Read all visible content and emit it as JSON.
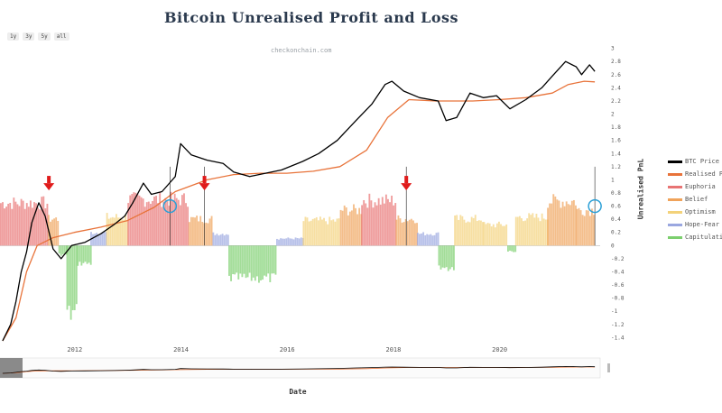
{
  "chart_data": {
    "type": "line",
    "title": "Bitcoin Unrealised Profit and Loss",
    "watermark": "checkonchain.com",
    "xlabel": "Date",
    "y2label": "Unrealised PnL",
    "range_buttons": [
      "1y",
      "3y",
      "5y",
      "all"
    ],
    "x_ticks": [
      "2012",
      "2014",
      "2016",
      "2018",
      "2020"
    ],
    "y2_ticks": [
      3,
      2.8,
      2.6,
      2.4,
      2.2,
      2,
      1.8,
      1.6,
      1.4,
      1.2,
      1,
      0.8,
      0.6,
      0.4,
      0.2,
      0,
      -0.2,
      -0.4,
      -0.6,
      -0.8,
      -1,
      -1.2,
      -1.4
    ],
    "y2lim": [
      -1.45,
      3.05
    ],
    "x_range": [
      2010.6,
      2021.9
    ],
    "legend": [
      {
        "label": "BTC Price",
        "color": "#000000"
      },
      {
        "label": "Realised Price",
        "color": "#e8733a"
      },
      {
        "label": "Euphoria",
        "color": "#e87474"
      },
      {
        "label": "Belief",
        "color": "#f0a35a"
      },
      {
        "label": "Optimism",
        "color": "#f3d27a"
      },
      {
        "label": "Hope-Fear",
        "color": "#9aa7e0"
      },
      {
        "label": "Capitulation",
        "color": "#7ccf6e"
      }
    ],
    "btc_price": [
      [
        2010.65,
        -1.45
      ],
      [
        2010.8,
        -1.2
      ],
      [
        2010.9,
        -0.85
      ],
      [
        2011.0,
        -0.4
      ],
      [
        2011.1,
        -0.1
      ],
      [
        2011.2,
        0.35
      ],
      [
        2011.33,
        0.65
      ],
      [
        2011.45,
        0.45
      ],
      [
        2011.6,
        -0.05
      ],
      [
        2011.75,
        -0.2
      ],
      [
        2011.95,
        0.0
      ],
      [
        2012.2,
        0.05
      ],
      [
        2012.5,
        0.18
      ],
      [
        2012.75,
        0.32
      ],
      [
        2012.95,
        0.45
      ],
      [
        2013.1,
        0.65
      ],
      [
        2013.3,
        0.95
      ],
      [
        2013.45,
        0.78
      ],
      [
        2013.65,
        0.82
      ],
      [
        2013.9,
        1.05
      ],
      [
        2014.0,
        1.55
      ],
      [
        2014.2,
        1.38
      ],
      [
        2014.5,
        1.3
      ],
      [
        2014.8,
        1.25
      ],
      [
        2015.0,
        1.12
      ],
      [
        2015.3,
        1.05
      ],
      [
        2015.6,
        1.1
      ],
      [
        2015.9,
        1.15
      ],
      [
        2016.3,
        1.28
      ],
      [
        2016.6,
        1.4
      ],
      [
        2016.95,
        1.6
      ],
      [
        2017.3,
        1.9
      ],
      [
        2017.6,
        2.15
      ],
      [
        2017.85,
        2.45
      ],
      [
        2017.98,
        2.5
      ],
      [
        2018.2,
        2.35
      ],
      [
        2018.5,
        2.25
      ],
      [
        2018.85,
        2.2
      ],
      [
        2019.0,
        1.9
      ],
      [
        2019.2,
        1.95
      ],
      [
        2019.45,
        2.32
      ],
      [
        2019.7,
        2.25
      ],
      [
        2019.95,
        2.28
      ],
      [
        2020.2,
        2.08
      ],
      [
        2020.5,
        2.22
      ],
      [
        2020.8,
        2.4
      ],
      [
        2021.0,
        2.58
      ],
      [
        2021.25,
        2.8
      ],
      [
        2021.45,
        2.72
      ],
      [
        2021.55,
        2.6
      ],
      [
        2021.7,
        2.75
      ],
      [
        2021.8,
        2.65
      ]
    ],
    "realised_price": [
      [
        2010.65,
        -1.45
      ],
      [
        2010.9,
        -1.1
      ],
      [
        2011.1,
        -0.4
      ],
      [
        2011.3,
        0.0
      ],
      [
        2011.6,
        0.12
      ],
      [
        2012.0,
        0.2
      ],
      [
        2012.5,
        0.28
      ],
      [
        2013.0,
        0.38
      ],
      [
        2013.5,
        0.58
      ],
      [
        2013.9,
        0.82
      ],
      [
        2014.5,
        1.0
      ],
      [
        2015.0,
        1.08
      ],
      [
        2015.5,
        1.1
      ],
      [
        2016.0,
        1.1
      ],
      [
        2016.5,
        1.13
      ],
      [
        2017.0,
        1.2
      ],
      [
        2017.5,
        1.45
      ],
      [
        2017.9,
        1.95
      ],
      [
        2018.3,
        2.22
      ],
      [
        2018.8,
        2.2
      ],
      [
        2019.5,
        2.2
      ],
      [
        2020.0,
        2.22
      ],
      [
        2020.5,
        2.25
      ],
      [
        2021.0,
        2.32
      ],
      [
        2021.3,
        2.45
      ],
      [
        2021.6,
        2.5
      ],
      [
        2021.8,
        2.49
      ]
    ],
    "unrealised_pnl_segments": [
      {
        "start": 2010.6,
        "end": 2011.5,
        "level": 0.72,
        "zone": "Euphoria"
      },
      {
        "start": 2011.5,
        "end": 2011.7,
        "level": 0.45,
        "zone": "Belief"
      },
      {
        "start": 2011.7,
        "end": 2011.85,
        "level": -0.15,
        "zone": "Capitulation"
      },
      {
        "start": 2011.85,
        "end": 2012.05,
        "level": -1.15,
        "zone": "Capitulation"
      },
      {
        "start": 2012.05,
        "end": 2012.3,
        "level": -0.3,
        "zone": "Capitulation"
      },
      {
        "start": 2012.3,
        "end": 2012.6,
        "level": 0.22,
        "zone": "Hope-Fear"
      },
      {
        "start": 2012.6,
        "end": 2013.0,
        "level": 0.48,
        "zone": "Optimism"
      },
      {
        "start": 2013.0,
        "end": 2014.15,
        "level": 0.78,
        "zone": "Euphoria"
      },
      {
        "start": 2014.15,
        "end": 2014.6,
        "level": 0.45,
        "zone": "Belief"
      },
      {
        "start": 2014.6,
        "end": 2014.9,
        "level": 0.2,
        "zone": "Hope-Fear"
      },
      {
        "start": 2014.9,
        "end": 2015.8,
        "level": -0.55,
        "zone": "Capitulation"
      },
      {
        "start": 2015.8,
        "end": 2016.3,
        "level": 0.12,
        "zone": "Hope-Fear"
      },
      {
        "start": 2016.3,
        "end": 2017.0,
        "level": 0.42,
        "zone": "Optimism"
      },
      {
        "start": 2017.0,
        "end": 2017.4,
        "level": 0.6,
        "zone": "Belief"
      },
      {
        "start": 2017.4,
        "end": 2018.05,
        "level": 0.76,
        "zone": "Euphoria"
      },
      {
        "start": 2018.05,
        "end": 2018.45,
        "level": 0.45,
        "zone": "Belief"
      },
      {
        "start": 2018.45,
        "end": 2018.85,
        "level": 0.2,
        "zone": "Hope-Fear"
      },
      {
        "start": 2018.85,
        "end": 2019.15,
        "level": -0.4,
        "zone": "Capitulation"
      },
      {
        "start": 2019.15,
        "end": 2019.7,
        "level": 0.45,
        "zone": "Optimism"
      },
      {
        "start": 2019.7,
        "end": 2020.15,
        "level": 0.35,
        "zone": "Optimism"
      },
      {
        "start": 2020.15,
        "end": 2020.3,
        "level": -0.1,
        "zone": "Capitulation"
      },
      {
        "start": 2020.3,
        "end": 2020.9,
        "level": 0.48,
        "zone": "Optimism"
      },
      {
        "start": 2020.9,
        "end": 2021.45,
        "level": 0.75,
        "zone": "Belief"
      },
      {
        "start": 2021.45,
        "end": 2021.8,
        "level": 0.6,
        "zone": "Belief"
      }
    ],
    "annotations": {
      "red_arrows": [
        2011.52,
        2014.45,
        2018.25
      ],
      "vertical_lines": [
        2013.8,
        2014.45,
        2018.25,
        2021.8
      ],
      "circles": [
        2013.8,
        2021.8
      ]
    }
  }
}
